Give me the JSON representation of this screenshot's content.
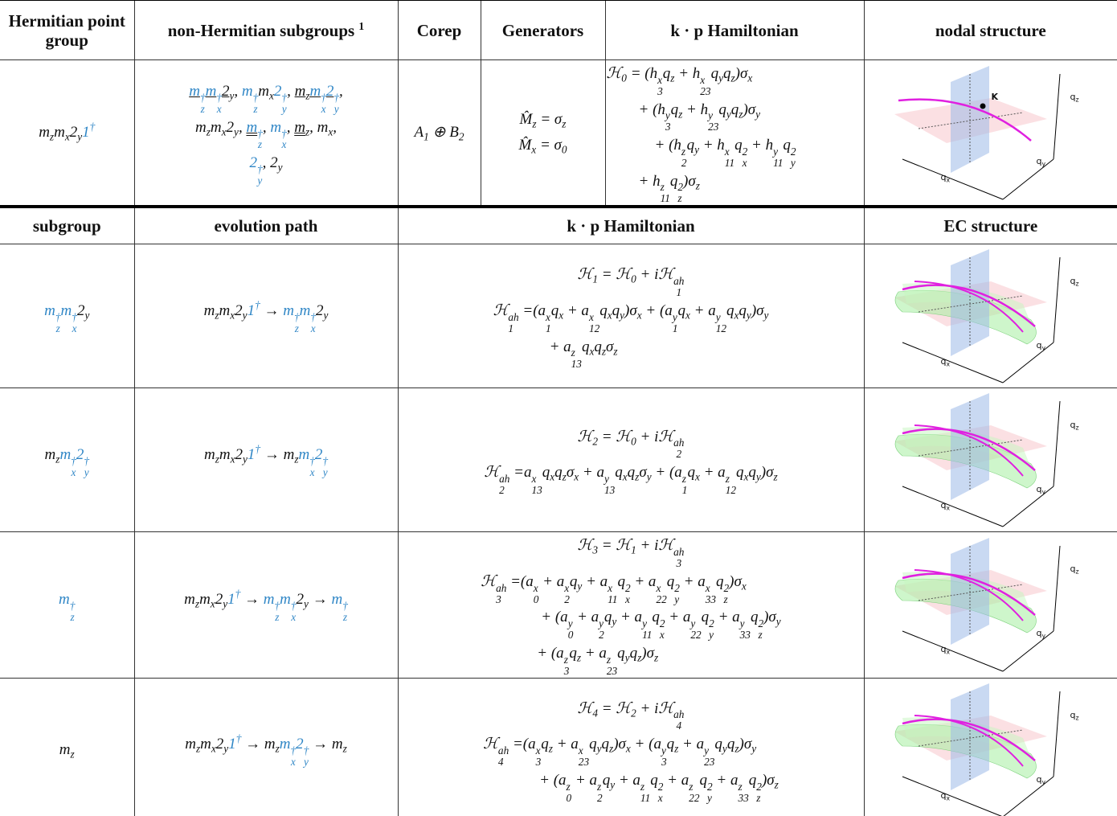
{
  "table": {
    "header": [
      "Hermitian point group",
      "non-Hermitian subgroups ^{1}",
      "Corep",
      "Generators",
      "k · p Hamiltonian",
      "nodal structure"
    ],
    "row": {
      "point_group": "m_{z}m_{x}2_{y}\\c{1^{†}}",
      "subgroups": [
        "\\u{\\c{m_{z}^{†}m_{x}^{†}}2_{y}}, \\c{m_{z}^{†}}m_{x}\\c{2_{y}^{†}}, \\u{m_{z}\\c{m_{x}^{†}2_{y}^{†}}},",
        "m_{z}m_{x}2_{y}, \\uu{\\c{m_{z}^{†}}}, \\c{m_{x}^{†}}, \\uu{m_{z}}, m_{x},",
        "\\c{2_{y}^{†}}, 2_{y}"
      ],
      "corep": "A_{1} ⊕ B_{2}",
      "generators": [
        "M̂_{z} = σ_{z}",
        "M̂_{x} = σ_{0}"
      ],
      "hamiltonian": [
        "ℋ_{0} = (h_{3}^{x}q_{z} + h_{23}^{x}q_{y}q_{z})σ_{x}",
        "+ (h_{3}^{y}q_{z} + h_{23}^{y}q_{y}q_{z})σ_{y}",
        "+ (h_{2}^{z}q_{y} + h_{11}^{x}q_{x}^{2} + h_{11}^{y}q_{y}^{2}",
        "+ h_{11}^{z}q_{z}^{2})σ_{z}"
      ],
      "plot_labels": [
        "q_{z}",
        "q_{y}",
        "q_{x}",
        "K"
      ]
    },
    "subheader": [
      "subgroup",
      "evolution path",
      "k · p Hamiltonian",
      "EC structure"
    ],
    "rows": [
      {
        "subgroup": "\\c{m_{z}^{†}m_{x}^{†}}2_{y}",
        "path": "m_{z}m_{x}2_{y}\\c{1^{†}} → \\c{m_{z}^{†}m_{x}^{†}}2_{y}",
        "hamiltonian": [
          "ℋ_{1} = ℋ_{0} + iℋ_{1}^{ah}",
          "ℋ_{1}^{ah} =(a_{1}^{x}q_{x} + a_{12}^{x}q_{x}q_{y})σ_{x} + (a_{1}^{y}q_{x} + a_{12}^{y}q_{x}q_{y})σ_{y}",
          "+ a_{13}^{z}q_{x}q_{z}σ_{z}"
        ],
        "plot_labels": [
          "q_{z}",
          "q_{y}",
          "q_{x}"
        ]
      },
      {
        "subgroup": "m_{z}\\c{m_{x}^{†}2_{y}^{†}}",
        "path": "m_{z}m_{x}2_{y}\\c{1^{†}} → m_{z}\\c{m_{x}^{†}2_{y}^{†}}",
        "hamiltonian": [
          "ℋ_{2} = ℋ_{0} + iℋ_{2}^{ah}",
          "ℋ_{2}^{ah} =a_{13}^{x}q_{x}q_{z}σ_{x} + a_{13}^{y}q_{x}q_{z}σ_{y} + (a_{1}^{z}q_{x} + a_{12}^{z}q_{x}q_{y})σ_{z}"
        ],
        "plot_labels": [
          "q_{z}",
          "q_{y}",
          "q_{x}"
        ]
      },
      {
        "subgroup": "\\c{m_{z}^{†}}",
        "path": "m_{z}m_{x}2_{y}\\c{1^{†}} → \\c{m_{z}^{†}m_{x}^{†}}2_{y} → \\c{m_{z}^{†}}",
        "hamiltonian": [
          "ℋ_{3} = ℋ_{1} + iℋ_{3}^{ah}",
          "ℋ_{3}^{ah} =(a_{0}^{x} + a_{2}^{x}q_{y} + a_{11}^{x}q_{x}^{2} + a_{22}^{x}q_{y}^{2} + a_{33}^{x}q_{z}^{2})σ_{x}",
          "+ (a_{0}^{y} + a_{2}^{y}q_{y} + a_{11}^{y}q_{x}^{2} + a_{22}^{y}q_{y}^{2} + a_{33}^{y}q_{z}^{2})σ_{y}",
          "+ (a_{3}^{z}q_{z} + a_{23}^{z}q_{y}q_{z})σ_{z}"
        ],
        "plot_labels": [
          "q_{z}",
          "q_{y}",
          "q_{x}"
        ]
      },
      {
        "subgroup": "m_{z}",
        "path": "m_{z}m_{x}2_{y}\\c{1^{†}} → m_{z}\\c{m_{x}^{†}2_{y}^{†}} → m_{z}",
        "hamiltonian": [
          "ℋ_{4} = ℋ_{2} + iℋ_{4}^{ah}",
          "ℋ_{4}^{ah} =(a_{3}^{x}q_{z} + a_{23}^{x}q_{y}q_{z})σ_{x} + (a_{3}^{y}q_{z} + a_{23}^{y}q_{y}q_{z})σ_{y}",
          "+ (a_{0}^{z} + a_{2}^{z}q_{y} + a_{11}^{z}q_{x}^{2} + a_{22}^{z}q_{y}^{2} + a_{33}^{z}q_{z}^{2})σ_{z}"
        ],
        "plot_labels": [
          "q_{z}",
          "q_{y}",
          "q_{x}"
        ]
      }
    ]
  }
}
